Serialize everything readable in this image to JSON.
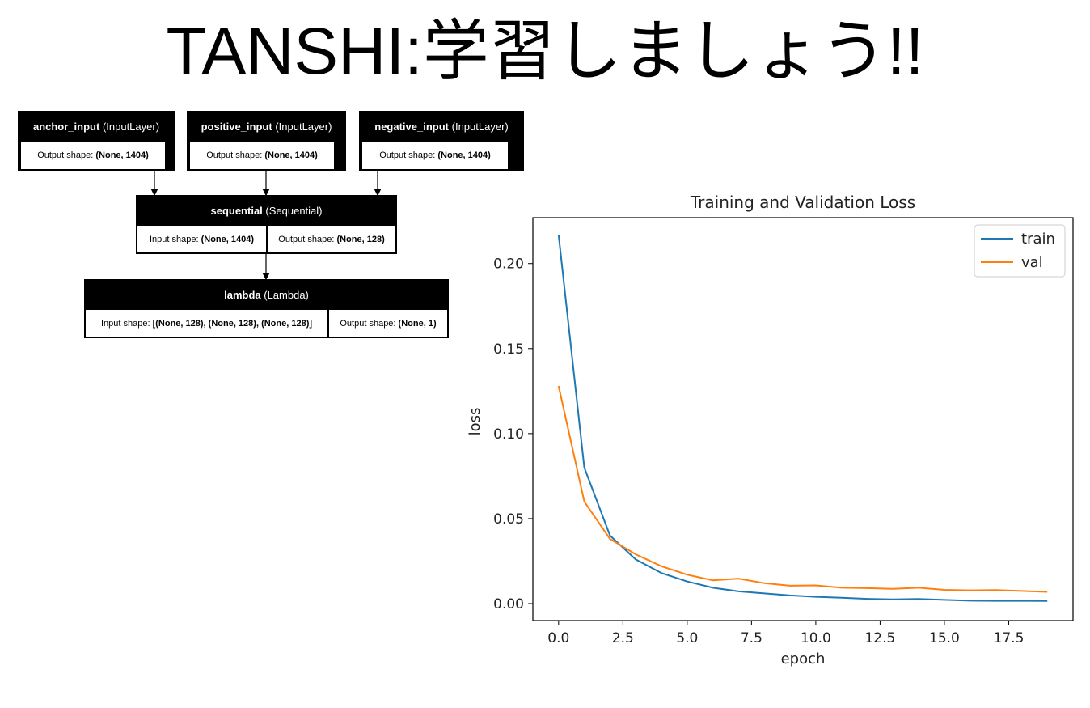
{
  "page": {
    "title": "TANSHI:学習しましょう!!"
  },
  "model": {
    "anchor": {
      "name": "anchor_input",
      "type": "(InputLayer)",
      "out_label": "Output shape: ",
      "out_value": "(None, 1404)"
    },
    "positive": {
      "name": "positive_input",
      "type": "(InputLayer)",
      "out_label": "Output shape: ",
      "out_value": "(None, 1404)"
    },
    "negative": {
      "name": "negative_input",
      "type": "(InputLayer)",
      "out_label": "Output shape: ",
      "out_value": "(None, 1404)"
    },
    "sequential": {
      "name": "sequential",
      "type": "(Sequential)",
      "in_label": "Input shape: ",
      "in_value": "(None, 1404)",
      "out_label": "Output shape: ",
      "out_value": "(None, 128)"
    },
    "lambda": {
      "name": "lambda",
      "type": "(Lambda)",
      "in_label": "Input shape: ",
      "in_value": "[(None, 128), (None, 128), (None, 128)]",
      "out_label": "Output shape: ",
      "out_value": "(None, 1)"
    }
  },
  "chart_data": {
    "type": "line",
    "title": "Training and Validation Loss",
    "xlabel": "epoch",
    "ylabel": "loss",
    "xlim": [
      -1,
      20
    ],
    "ylim": [
      -0.01,
      0.227
    ],
    "xticks": [
      0,
      2.5,
      5,
      7.5,
      10,
      12.5,
      15,
      17.5
    ],
    "xtick_labels": [
      "0.0",
      "2.5",
      "5.0",
      "7.5",
      "10.0",
      "12.5",
      "15.0",
      "17.5"
    ],
    "yticks": [
      0,
      0.05,
      0.1,
      0.15,
      0.2
    ],
    "ytick_labels": [
      "0.00",
      "0.05",
      "0.10",
      "0.15",
      "0.20"
    ],
    "legend_position": "upper-right",
    "x": [
      0,
      1,
      2,
      3,
      4,
      5,
      6,
      7,
      8,
      9,
      10,
      11,
      12,
      13,
      14,
      15,
      16,
      17,
      18,
      19
    ],
    "series": [
      {
        "name": "train",
        "color": "#1f77b4",
        "values": [
          0.217,
          0.08,
          0.04,
          0.026,
          0.018,
          0.013,
          0.0093,
          0.0072,
          0.006,
          0.0048,
          0.004,
          0.0034,
          0.0028,
          0.0025,
          0.0027,
          0.0022,
          0.0017,
          0.0016,
          0.0016,
          0.0015
        ]
      },
      {
        "name": "val",
        "color": "#ff7f0e",
        "values": [
          0.128,
          0.06,
          0.038,
          0.029,
          0.022,
          0.017,
          0.0137,
          0.0147,
          0.012,
          0.0105,
          0.0107,
          0.0093,
          0.0091,
          0.0087,
          0.0093,
          0.0081,
          0.0078,
          0.008,
          0.0074,
          0.0069
        ]
      }
    ]
  }
}
